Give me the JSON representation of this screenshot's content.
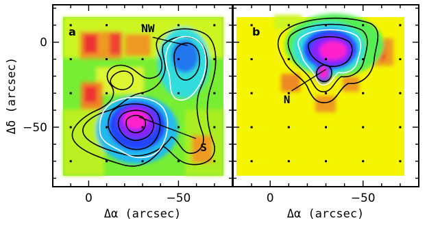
{
  "chart_data": [
    {
      "type": "heatmap",
      "panel_label": "a",
      "xlabel": "Δα (arcsec)",
      "ylabel": "Δδ (arcsec)",
      "xlim": [
        20,
        -80
      ],
      "ylim": [
        -85,
        22
      ],
      "x_ticks": [
        "0",
        "−50"
      ],
      "y_ticks": [
        "0",
        "−50"
      ],
      "sources": [
        {
          "label": "NW",
          "x": -55,
          "y": -2
        },
        {
          "label": "S",
          "x": -28,
          "y": -44
        }
      ],
      "annotations": [
        {
          "text": "NW",
          "text_x": -33,
          "text_y": 6,
          "arrow_to_x": -55,
          "arrow_to_y": -2
        },
        {
          "text": "S",
          "text_x": -64,
          "text_y": -64,
          "arrow_to_x": -28,
          "arrow_to_y": -44
        }
      ]
    },
    {
      "type": "heatmap",
      "panel_label": "b",
      "xlabel": "Δα (arcsec)",
      "ylabel": "",
      "xlim": [
        20,
        -80
      ],
      "ylim": [
        -85,
        22
      ],
      "x_ticks": [
        "0",
        "−50"
      ],
      "y_ticks": [],
      "sources": [
        {
          "label": "N",
          "x": -30,
          "y": -16
        }
      ],
      "annotations": [
        {
          "text": "N",
          "text_x": -9,
          "text_y": -36,
          "arrow_to_x": -30,
          "arrow_to_y": -16
        }
      ]
    }
  ],
  "colors": {
    "background": "#f5f500",
    "low_yellow": "#ffff00",
    "green": "#66ee33",
    "cyan": "#22dddd",
    "blue": "#2255ff",
    "purple": "#8822ff",
    "magenta": "#ff22cc",
    "orange": "#ff9900",
    "red": "#ee3333"
  }
}
